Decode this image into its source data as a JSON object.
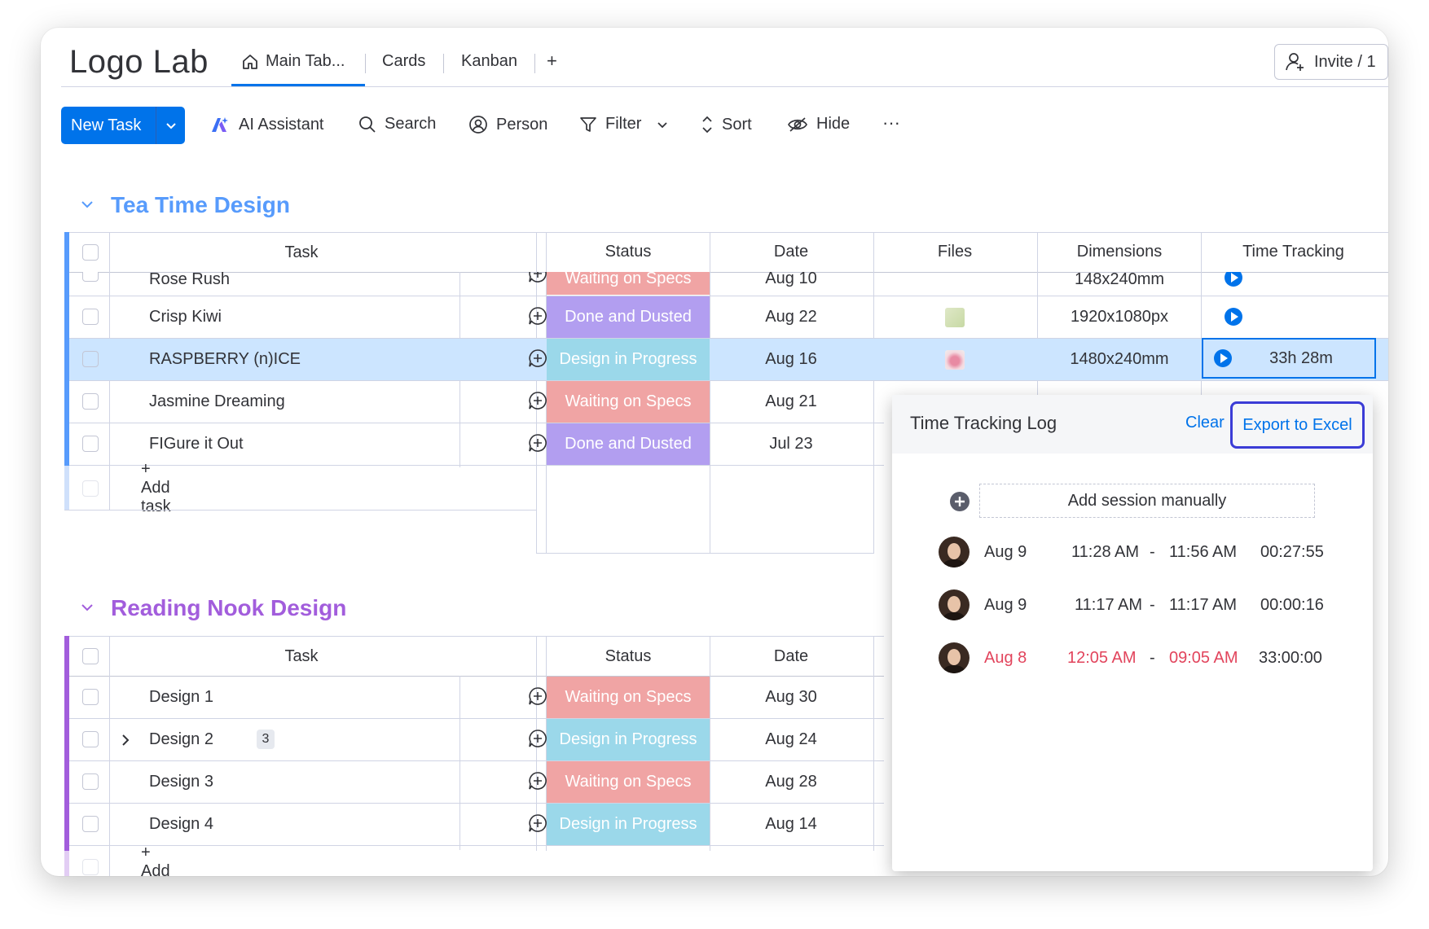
{
  "board": {
    "title": "Logo Lab",
    "tabs": [
      "Main Tab...",
      "Cards",
      "Kanban",
      "+"
    ],
    "invite_label": "Invite / 1"
  },
  "toolbar": {
    "new_task": "New Task",
    "ai_assistant": "AI Assistant",
    "search": "Search",
    "person": "Person",
    "filter": "Filter",
    "sort": "Sort",
    "hide": "Hide",
    "more": "···"
  },
  "columns": {
    "task": "Task",
    "status": "Status",
    "date": "Date",
    "files": "Files",
    "dimensions": "Dimensions",
    "time_tracking": "Time Tracking"
  },
  "groups": [
    {
      "title": "Tea Time Design",
      "color": "#579bfc",
      "add_task": "+ Add task",
      "rows": [
        {
          "task": "Rose Rush",
          "status": "Waiting on Specs",
          "status_color": "#f0a4a4",
          "date": "Aug 10",
          "dimensions": "148x240mm"
        },
        {
          "task": "Crisp Kiwi",
          "status": "Done and Dusted",
          "status_color": "#b29ef0",
          "date": "Aug 22",
          "dimensions": "1920x1080px"
        },
        {
          "task": "RASPBERRY (n)ICE",
          "status": "Design in Progress",
          "status_color": "#9bd8ea",
          "date": "Aug 16",
          "dimensions": "1480x240mm",
          "time": "33h 28m"
        },
        {
          "task": "Jasmine Dreaming",
          "status": "Waiting on Specs",
          "status_color": "#f0a4a4",
          "date": "Aug 21"
        },
        {
          "task": "FIGure it Out",
          "status": "Done and Dusted",
          "status_color": "#b29ef0",
          "date": "Jul 23"
        }
      ]
    },
    {
      "title": "Reading Nook Design",
      "color": "#a25ddc",
      "add_task": "+ Add task",
      "rows": [
        {
          "task": "Design 1",
          "status": "Waiting on Specs",
          "status_color": "#f0a4a4",
          "date": "Aug 30"
        },
        {
          "task": "Design 2",
          "subitems": "3",
          "status": "Design in Progress",
          "status_color": "#9bd8ea",
          "date": "Aug 24"
        },
        {
          "task": "Design 3",
          "status": "Waiting on Specs",
          "status_color": "#f0a4a4",
          "date": "Aug 28"
        },
        {
          "task": "Design 4",
          "status": "Design in Progress",
          "status_color": "#9bd8ea",
          "date": "Aug 14"
        }
      ]
    }
  ],
  "popup": {
    "title": "Time Tracking Log",
    "clear": "Clear",
    "export": "Export to Excel",
    "add_session": "Add session manually",
    "sessions": [
      {
        "date": "Aug 9",
        "start": "11:28 AM",
        "sep": "-",
        "end": "11:56 AM",
        "duration": "00:27:55"
      },
      {
        "date": "Aug 9",
        "start": "11:17 AM",
        "sep": "-",
        "end": "11:17 AM",
        "duration": "00:00:16"
      },
      {
        "date": "Aug 8",
        "start": "12:05 AM",
        "sep": "-",
        "end": "09:05 AM",
        "duration": "33:00:00",
        "highlight": "#e2445c"
      }
    ]
  },
  "colors": {
    "primary": "#0073ea",
    "selected_row": "#cce5ff",
    "export_outline": "#3b3cd6"
  }
}
